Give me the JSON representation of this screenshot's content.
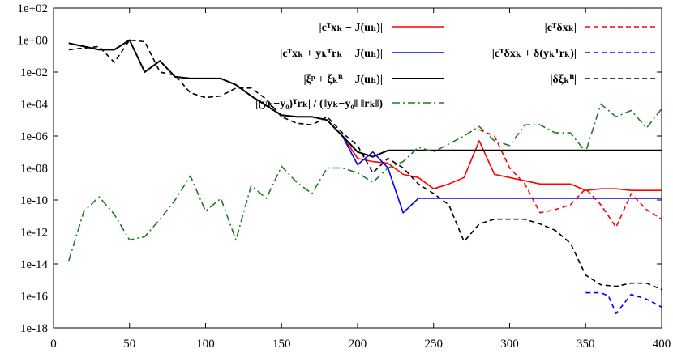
{
  "chart_data": {
    "type": "line",
    "title": "",
    "xlabel": "",
    "ylabel": "",
    "xlim": [
      0,
      400
    ],
    "ylim_exp": [
      -18,
      2
    ],
    "ylog": true,
    "grid": false,
    "legend_placement": "top-right, two columns",
    "x_ticks": [
      "0",
      "50",
      "100",
      "150",
      "200",
      "250",
      "300",
      "350",
      "400"
    ],
    "y_ticks": [
      "1e+02",
      "1e+00",
      "1e-02",
      "1e-04",
      "1e-06",
      "1e-08",
      "1e-10",
      "1e-12",
      "1e-14",
      "1e-16",
      "1e-18"
    ],
    "series": [
      {
        "name": "|cᵀxₖ − J(uₕ)|",
        "color": "#ff0000",
        "dash": "solid",
        "x": [
          10,
          20,
          30,
          40,
          50,
          60,
          70,
          80,
          90,
          100,
          110,
          120,
          130,
          140,
          150,
          160,
          170,
          180,
          190,
          200,
          210,
          220,
          230,
          240,
          250,
          260,
          270,
          280,
          290,
          300,
          310,
          320,
          330,
          340,
          350,
          360,
          370,
          380,
          390,
          400
        ],
        "log10_y": [
          -0.2,
          -0.4,
          -0.6,
          -0.6,
          0.0,
          -2.0,
          -1.3,
          -2.3,
          -2.4,
          -2.4,
          -2.4,
          -2.8,
          -3.5,
          -4.1,
          -4.7,
          -4.8,
          -4.8,
          -5.0,
          -6.0,
          -7.4,
          -7.6,
          -7.7,
          -8.4,
          -8.6,
          -9.3,
          -9.0,
          -8.6,
          -6.3,
          -8.4,
          -8.6,
          -8.8,
          -9.0,
          -9.0,
          -9.0,
          -9.4,
          -9.3,
          -9.3,
          -9.4,
          -9.4,
          -9.4
        ]
      },
      {
        "name": "|cᵀxₖ + yₖᵀrₖ − J(uₕ)|",
        "color": "#0000ff",
        "dash": "solid",
        "x": [
          190,
          200,
          210,
          220,
          230,
          240,
          250,
          260,
          270,
          280,
          290,
          300,
          310,
          320,
          330,
          340,
          350,
          360,
          370,
          380,
          390,
          400
        ],
        "log10_y": [
          -6.0,
          -7.8,
          -7.0,
          -8.0,
          -10.8,
          -9.9,
          -9.9,
          -9.9,
          -9.9,
          -9.9,
          -9.9,
          -9.9,
          -9.9,
          -9.9,
          -9.9,
          -9.9,
          -9.9,
          -9.9,
          -9.9,
          -9.9,
          -9.9,
          -9.9
        ]
      },
      {
        "name": "|ξᵖ + ξₖᴮ − J(uₕ)|",
        "color": "#000000",
        "dash": "solid",
        "x": [
          10,
          20,
          30,
          40,
          50,
          60,
          70,
          80,
          90,
          100,
          110,
          120,
          130,
          140,
          150,
          160,
          170,
          180,
          190,
          200,
          210,
          220,
          230,
          240,
          250,
          260,
          270,
          280,
          290,
          300,
          310,
          320,
          330,
          340,
          350,
          360,
          370,
          380,
          390,
          400
        ],
        "log10_y": [
          -0.2,
          -0.4,
          -0.6,
          -0.6,
          0.0,
          -2.0,
          -1.3,
          -2.3,
          -2.4,
          -2.4,
          -2.4,
          -2.8,
          -3.5,
          -4.1,
          -4.7,
          -4.8,
          -4.8,
          -5.0,
          -6.0,
          -7.0,
          -7.3,
          -6.9,
          -6.9,
          -6.9,
          -6.9,
          -6.9,
          -6.9,
          -6.9,
          -6.9,
          -6.9,
          -6.9,
          -6.9,
          -6.9,
          -6.9,
          -6.9,
          -6.9,
          -6.9,
          -6.9,
          -6.9,
          -6.9
        ]
      },
      {
        "name": "|(yₖ−y₀)ᵀrₖ| / (‖yₖ−y₀‖ ‖rₖ‖)",
        "color": "#1e7a1e",
        "dash": "dashdot",
        "x": [
          10,
          20,
          30,
          40,
          50,
          60,
          70,
          80,
          90,
          100,
          110,
          120,
          130,
          140,
          150,
          160,
          170,
          180,
          190,
          200,
          210,
          220,
          230,
          240,
          250,
          260,
          270,
          280,
          290,
          300,
          310,
          320,
          330,
          340,
          350,
          360,
          370,
          380,
          390,
          400
        ],
        "log10_y": [
          -13.8,
          -10.7,
          -9.8,
          -10.9,
          -12.5,
          -12.3,
          -11.2,
          -10.0,
          -8.5,
          -10.7,
          -9.9,
          -12.5,
          -9.1,
          -9.9,
          -7.9,
          -8.9,
          -9.6,
          -8.0,
          -8.0,
          -8.3,
          -8.9,
          -8.0,
          -7.6,
          -6.7,
          -7.0,
          -6.5,
          -6.0,
          -5.4,
          -6.3,
          -6.6,
          -5.3,
          -5.3,
          -5.8,
          -5.8,
          -7.0,
          -4.0,
          -4.8,
          -4.4,
          -5.5,
          -4.3
        ]
      },
      {
        "name": "|cᵀδxₖ|",
        "color": "#ff0000",
        "dash": "dashed",
        "x": [
          280,
          290,
          300,
          310,
          320,
          330,
          340,
          350,
          360,
          370,
          380,
          390,
          400
        ],
        "log10_y": [
          -5.6,
          -6.0,
          -8.0,
          -9.0,
          -10.8,
          -10.6,
          -10.3,
          -9.3,
          -10.3,
          -11.7,
          -9.6,
          -10.6,
          -11.2
        ]
      },
      {
        "name": "|cᵀδxₖ + δ(yₖᵀrₖ)|",
        "color": "#0000ff",
        "dash": "dashed",
        "x": [
          350,
          360,
          365,
          370,
          380,
          390,
          400
        ],
        "log10_y": [
          -15.8,
          -15.8,
          -16.0,
          -17.1,
          -15.9,
          -16.2,
          -16.7
        ]
      },
      {
        "name": "|δξₖᴮ|",
        "color": "#000000",
        "dash": "dashed",
        "x": [
          10,
          20,
          30,
          40,
          50,
          60,
          70,
          80,
          90,
          100,
          110,
          120,
          130,
          140,
          150,
          160,
          170,
          180,
          190,
          200,
          210,
          220,
          230,
          240,
          250,
          260,
          270,
          280,
          290,
          300,
          310,
          320,
          330,
          340,
          350,
          360,
          370,
          380,
          390,
          400
        ],
        "log10_y": [
          -0.6,
          -0.5,
          -0.4,
          -1.4,
          0.0,
          -0.1,
          -2.0,
          -2.2,
          -3.3,
          -3.6,
          -3.5,
          -3.0,
          -3.0,
          -3.7,
          -4.8,
          -5.2,
          -5.3,
          -4.8,
          -5.8,
          -6.6,
          -8.3,
          -7.4,
          -8.0,
          -9.0,
          -9.6,
          -10.3,
          -12.6,
          -11.5,
          -11.2,
          -11.2,
          -11.2,
          -11.5,
          -11.9,
          -12.7,
          -14.7,
          -15.3,
          -15.4,
          -15.2,
          -15.2,
          -15.6
        ]
      }
    ],
    "legend_row_ys": [
      33,
      65,
      97,
      127
    ]
  }
}
